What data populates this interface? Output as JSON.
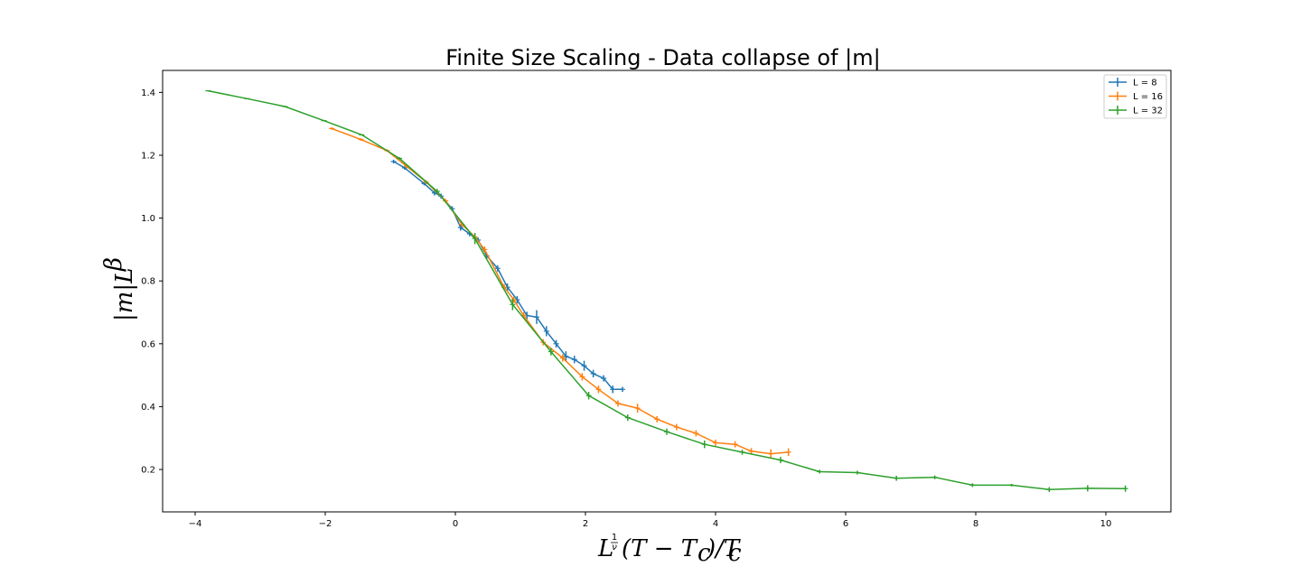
{
  "chart_data": {
    "type": "line",
    "title": "Finite Size Scaling - Data collapse of |m|",
    "xlabel": "L^(1/ν)(T − T_c)/T_c",
    "ylabel": "|m|L^β",
    "xlim": [
      -4.5,
      11.0
    ],
    "ylim": [
      0.065,
      1.47
    ],
    "xticks": [
      -4,
      -2,
      0,
      2,
      4,
      6,
      8,
      10
    ],
    "xtick_labels": [
      "−4",
      "−2",
      "0",
      "2",
      "4",
      "6",
      "8",
      "10"
    ],
    "yticks": [
      0.2,
      0.4,
      0.6,
      0.8,
      1.0,
      1.2,
      1.4
    ],
    "ytick_labels": [
      "0.2",
      "0.4",
      "0.6",
      "0.8",
      "1.0",
      "1.2",
      "1.4"
    ],
    "grid": false,
    "legend_position": "top-right",
    "error_bars": true,
    "series": [
      {
        "name": "L = 8",
        "color": "#1f77b4",
        "points": [
          [
            -0.95,
            1.18
          ],
          [
            -0.78,
            1.16
          ],
          [
            -0.48,
            1.11
          ],
          [
            -0.32,
            1.08
          ],
          [
            -0.22,
            1.07
          ],
          [
            -0.05,
            1.03
          ],
          [
            0.08,
            0.97
          ],
          [
            0.22,
            0.95
          ],
          [
            0.35,
            0.93
          ],
          [
            0.48,
            0.88
          ],
          [
            0.65,
            0.84
          ],
          [
            0.8,
            0.78
          ],
          [
            0.95,
            0.74
          ],
          [
            1.1,
            0.69
          ],
          [
            1.25,
            0.685
          ],
          [
            1.4,
            0.64
          ],
          [
            1.55,
            0.6
          ],
          [
            1.7,
            0.56
          ],
          [
            1.83,
            0.55
          ],
          [
            1.98,
            0.53
          ],
          [
            2.12,
            0.505
          ],
          [
            2.28,
            0.49
          ],
          [
            2.42,
            0.455
          ],
          [
            2.57,
            0.455
          ]
        ],
        "errors": [
          0.006,
          0.006,
          0.006,
          0.008,
          0.008,
          0.008,
          0.01,
          0.008,
          0.008,
          0.01,
          0.01,
          0.012,
          0.012,
          0.012,
          0.022,
          0.016,
          0.012,
          0.016,
          0.012,
          0.016,
          0.012,
          0.01,
          0.012,
          0.008
        ]
      },
      {
        "name": "L = 16",
        "color": "#ff7f0e",
        "points": [
          [
            -1.9,
            1.285
          ],
          [
            -1.45,
            1.25
          ],
          [
            -1.05,
            1.215
          ],
          [
            -0.75,
            1.165
          ],
          [
            -0.45,
            1.115
          ],
          [
            -0.15,
            1.055
          ],
          [
            0.1,
            0.98
          ],
          [
            0.3,
            0.94
          ],
          [
            0.45,
            0.9
          ],
          [
            0.75,
            0.78
          ],
          [
            0.9,
            0.74
          ],
          [
            1.05,
            0.69
          ],
          [
            1.35,
            0.605
          ],
          [
            1.65,
            0.555
          ],
          [
            1.95,
            0.495
          ],
          [
            2.2,
            0.455
          ],
          [
            2.5,
            0.41
          ],
          [
            2.8,
            0.395
          ],
          [
            3.1,
            0.36
          ],
          [
            3.4,
            0.335
          ],
          [
            3.7,
            0.315
          ],
          [
            4.0,
            0.285
          ],
          [
            4.3,
            0.28
          ],
          [
            4.55,
            0.258
          ],
          [
            4.85,
            0.25
          ],
          [
            5.12,
            0.255
          ]
        ],
        "errors": [
          0.004,
          0.004,
          0.004,
          0.006,
          0.006,
          0.006,
          0.008,
          0.008,
          0.01,
          0.01,
          0.01,
          0.01,
          0.01,
          0.012,
          0.012,
          0.012,
          0.01,
          0.014,
          0.01,
          0.01,
          0.01,
          0.01,
          0.01,
          0.01,
          0.014,
          0.012
        ]
      },
      {
        "name": "L = 32",
        "color": "#2ca02c",
        "points": [
          [
            -3.8,
            1.405
          ],
          [
            -3.2,
            1.38
          ],
          [
            -2.62,
            1.355
          ],
          [
            -2.02,
            1.31
          ],
          [
            -1.44,
            1.265
          ],
          [
            -0.86,
            1.19
          ],
          [
            -0.28,
            1.085
          ],
          [
            0.3,
            0.935
          ],
          [
            0.88,
            0.725
          ],
          [
            1.47,
            0.575
          ],
          [
            2.05,
            0.435
          ],
          [
            2.65,
            0.365
          ],
          [
            3.25,
            0.32
          ],
          [
            3.83,
            0.28
          ],
          [
            4.41,
            0.255
          ],
          [
            5.0,
            0.23
          ],
          [
            5.6,
            0.193
          ],
          [
            6.18,
            0.19
          ],
          [
            6.78,
            0.172
          ],
          [
            7.37,
            0.175
          ],
          [
            7.95,
            0.15
          ],
          [
            8.55,
            0.15
          ],
          [
            9.13,
            0.136
          ],
          [
            9.72,
            0.14
          ],
          [
            10.3,
            0.139
          ]
        ],
        "errors": [
          0.002,
          0.002,
          0.002,
          0.002,
          0.002,
          0.004,
          0.008,
          0.018,
          0.018,
          0.012,
          0.012,
          0.01,
          0.01,
          0.012,
          0.008,
          0.01,
          0.006,
          0.006,
          0.008,
          0.006,
          0.006,
          0.004,
          0.008,
          0.01,
          0.01
        ]
      }
    ]
  }
}
